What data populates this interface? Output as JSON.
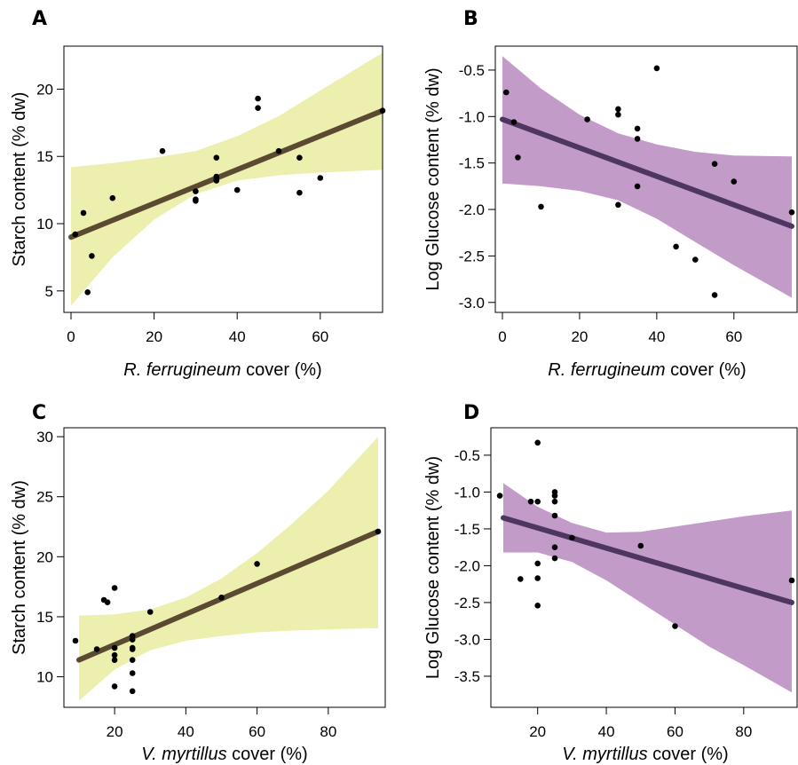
{
  "colors": {
    "yellow_band": "#ecefae",
    "yellow_line": "#5a4a32",
    "purple_band": "#c39bc9",
    "purple_line": "#4d3660",
    "points": "#000000"
  },
  "chart_data": [
    {
      "panel": "A",
      "type": "scatter",
      "xlabel_italic": "R. ferrugineum",
      "xlabel_rest": " cover (%)",
      "ylabel": "Starch content (% dw)",
      "xlim": [
        0,
        75
      ],
      "ylim": [
        3.8,
        22.8
      ],
      "xticks": [
        0,
        20,
        40,
        60
      ],
      "yticks": [
        5,
        10,
        15,
        20
      ],
      "x": [
        1,
        3,
        4,
        5,
        10,
        22,
        30,
        30,
        30,
        35,
        35,
        35,
        35,
        40,
        45,
        45,
        50,
        55,
        55,
        60,
        75
      ],
      "y": [
        9.2,
        10.8,
        4.9,
        7.6,
        11.9,
        15.4,
        12.4,
        11.8,
        11.7,
        14.9,
        13.5,
        13.2,
        13.3,
        12.5,
        19.3,
        18.6,
        15.4,
        14.9,
        12.3,
        13.4,
        18.4
      ],
      "fit": {
        "x": [
          0,
          75
        ],
        "y": [
          9.0,
          18.4
        ]
      },
      "band": {
        "x": [
          0,
          10,
          20,
          30,
          40,
          50,
          60,
          75
        ],
        "lower": [
          3.9,
          7.5,
          10.3,
          12.2,
          13.2,
          13.6,
          13.8,
          14.0
        ],
        "upper": [
          14.2,
          14.5,
          14.9,
          15.4,
          16.5,
          18.0,
          19.9,
          22.7
        ]
      },
      "colors": {
        "band": "#ecefae",
        "line": "#5a4a32"
      }
    },
    {
      "panel": "B",
      "type": "scatter",
      "xlabel_italic": "R. ferrugineum",
      "xlabel_rest": " cover (%)",
      "ylabel": "Log Glucose content (% dw)",
      "xlim": [
        0,
        75
      ],
      "ylim": [
        -3.05,
        -0.3
      ],
      "xticks": [
        0,
        20,
        40,
        60
      ],
      "yticks": [
        "-0.5",
        "-1.0",
        "-1.5",
        "-2.0",
        "-2.5",
        "-3.0"
      ],
      "ytick_values": [
        -0.5,
        -1.0,
        -1.5,
        -2.0,
        -2.5,
        -3.0
      ],
      "x": [
        1,
        3,
        4,
        10,
        22,
        30,
        30,
        30,
        35,
        35,
        35,
        40,
        45,
        50,
        55,
        55,
        60,
        75
      ],
      "y": [
        -0.74,
        -1.06,
        -1.44,
        -1.97,
        -1.03,
        -0.92,
        -0.98,
        -1.95,
        -1.13,
        -1.24,
        -1.75,
        -0.48,
        -2.4,
        -2.54,
        -2.92,
        -1.51,
        -1.7,
        -2.03
      ],
      "fit": {
        "x": [
          0,
          75
        ],
        "y": [
          -1.03,
          -2.18
        ]
      },
      "band": {
        "x": [
          0,
          10,
          20,
          30,
          40,
          50,
          60,
          75
        ],
        "lower": [
          -1.72,
          -1.75,
          -1.8,
          -1.9,
          -2.1,
          -2.35,
          -2.6,
          -2.95
        ],
        "upper": [
          -0.35,
          -0.7,
          -0.98,
          -1.18,
          -1.3,
          -1.38,
          -1.42,
          -1.43
        ]
      },
      "colors": {
        "band": "#c39bc9",
        "line": "#4d3660"
      }
    },
    {
      "panel": "C",
      "type": "scatter",
      "xlabel_italic": "V. myrtillus",
      "xlabel_rest": " cover (%)",
      "ylabel": "Starch content (% dw)",
      "xlim": [
        10,
        94
      ],
      "ylim": [
        7.9,
        30.3
      ],
      "xticks": [
        20,
        40,
        60,
        80
      ],
      "yticks": [
        10,
        15,
        20,
        25,
        30
      ],
      "x": [
        9,
        15,
        17,
        18,
        20,
        20,
        20,
        20,
        20,
        25,
        25,
        25,
        25,
        25,
        25,
        25,
        30,
        50,
        60,
        94
      ],
      "y": [
        13.0,
        12.3,
        16.4,
        16.2,
        17.4,
        12.4,
        11.8,
        11.4,
        9.2,
        13.4,
        13.1,
        12.4,
        12.3,
        11.4,
        10.3,
        8.8,
        15.4,
        16.6,
        19.4,
        22.1
      ],
      "fit": {
        "x": [
          10,
          94
        ],
        "y": [
          11.4,
          22.1
        ]
      },
      "band": {
        "x": [
          10,
          20,
          30,
          40,
          50,
          60,
          70,
          80,
          94
        ],
        "lower": [
          8.0,
          10.6,
          12.2,
          13.0,
          13.4,
          13.7,
          13.85,
          13.95,
          14.05
        ],
        "upper": [
          15.1,
          15.2,
          15.6,
          16.6,
          18.2,
          20.3,
          22.8,
          25.5,
          30.0
        ]
      },
      "colors": {
        "band": "#ecefae",
        "line": "#5a4a32"
      }
    },
    {
      "panel": "D",
      "type": "scatter",
      "xlabel_italic": "V. myrtillus",
      "xlabel_rest": " cover (%)",
      "ylabel": "Log Glucose content (% dw)",
      "xlim": [
        10,
        94
      ],
      "ylim": [
        -3.85,
        -0.2
      ],
      "xticks": [
        20,
        40,
        60,
        80
      ],
      "yticks": [
        "-0.5",
        "-1.0",
        "-1.5",
        "-2.0",
        "-2.5",
        "-3.0",
        "-3.5"
      ],
      "ytick_values": [
        -0.5,
        -1.0,
        -1.5,
        -2.0,
        -2.5,
        -3.0,
        -3.5
      ],
      "x": [
        9,
        15,
        18,
        20,
        20,
        20,
        20,
        20,
        25,
        25,
        25,
        25,
        25,
        25,
        30,
        50,
        60,
        94
      ],
      "y": [
        -1.05,
        -2.18,
        -1.13,
        -0.33,
        -1.13,
        -1.97,
        -2.17,
        -2.54,
        -1.0,
        -1.05,
        -1.13,
        -1.32,
        -1.75,
        -1.9,
        -1.62,
        -1.73,
        -2.82,
        -2.2
      ],
      "fit": {
        "x": [
          10,
          94
        ],
        "y": [
          -1.35,
          -2.5
        ]
      },
      "band": {
        "x": [
          10,
          20,
          30,
          40,
          50,
          60,
          70,
          80,
          94
        ],
        "lower": [
          -1.82,
          -1.82,
          -1.95,
          -2.2,
          -2.5,
          -2.8,
          -3.1,
          -3.35,
          -3.72
        ],
        "upper": [
          -0.88,
          -1.2,
          -1.42,
          -1.55,
          -1.54,
          -1.47,
          -1.4,
          -1.33,
          -1.25
        ]
      },
      "colors": {
        "band": "#c39bc9",
        "line": "#4d3660"
      }
    }
  ]
}
